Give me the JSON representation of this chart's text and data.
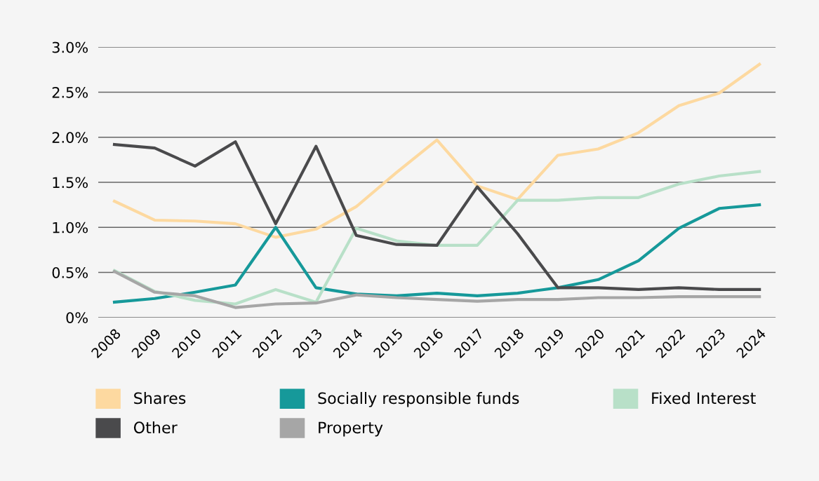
{
  "chart_data": {
    "type": "line",
    "categories": [
      "2008",
      "2009",
      "2010",
      "2011",
      "2012",
      "2013",
      "2014",
      "2015",
      "2016",
      "2017",
      "2018",
      "2019",
      "2020",
      "2021",
      "2022",
      "2023",
      "2024"
    ],
    "series": [
      {
        "name": "Shares",
        "color": "#fdd9a0",
        "values": [
          1.29,
          1.08,
          1.07,
          1.04,
          0.89,
          0.98,
          1.23,
          1.61,
          1.97,
          1.46,
          1.31,
          1.8,
          1.87,
          2.05,
          2.35,
          2.49,
          2.81
        ]
      },
      {
        "name": "Socially responsible funds",
        "color": "#16999a",
        "values": [
          0.17,
          0.21,
          0.28,
          0.36,
          1.0,
          0.33,
          0.26,
          0.24,
          0.27,
          0.24,
          0.27,
          0.33,
          0.42,
          0.63,
          0.99,
          1.21,
          1.25
        ]
      },
      {
        "name": "Fixed Interest",
        "color": "#b8e0c8",
        "values": [
          0.52,
          0.29,
          0.19,
          0.15,
          0.31,
          0.17,
          0.99,
          0.85,
          0.8,
          0.8,
          1.3,
          1.3,
          1.33,
          1.33,
          1.48,
          1.57,
          1.62
        ]
      },
      {
        "name": "Other",
        "color": "#4a4a4c",
        "values": [
          1.92,
          1.88,
          1.68,
          1.95,
          1.04,
          1.9,
          0.91,
          0.81,
          0.8,
          1.45,
          0.93,
          0.33,
          0.33,
          0.31,
          0.33,
          0.31,
          0.31
        ]
      },
      {
        "name": "Property",
        "color": "#a6a6a6",
        "values": [
          0.51,
          0.28,
          0.24,
          0.11,
          0.15,
          0.16,
          0.25,
          0.22,
          0.2,
          0.18,
          0.2,
          0.2,
          0.22,
          0.22,
          0.23,
          0.23,
          0.23
        ]
      }
    ],
    "ylim": [
      0,
      3.0
    ],
    "yticks": [
      {
        "value": 0,
        "label": "0%"
      },
      {
        "value": 0.5,
        "label": "0.5%"
      },
      {
        "value": 1.0,
        "label": "1.0%"
      },
      {
        "value": 1.5,
        "label": "1.5%"
      },
      {
        "value": 2.0,
        "label": "2.0%"
      },
      {
        "value": 2.5,
        "label": "2.5%"
      },
      {
        "value": 3.0,
        "label": "3.0%"
      }
    ],
    "grid": "y",
    "legend": "bottom",
    "marker": "none",
    "line_style": "solid"
  }
}
